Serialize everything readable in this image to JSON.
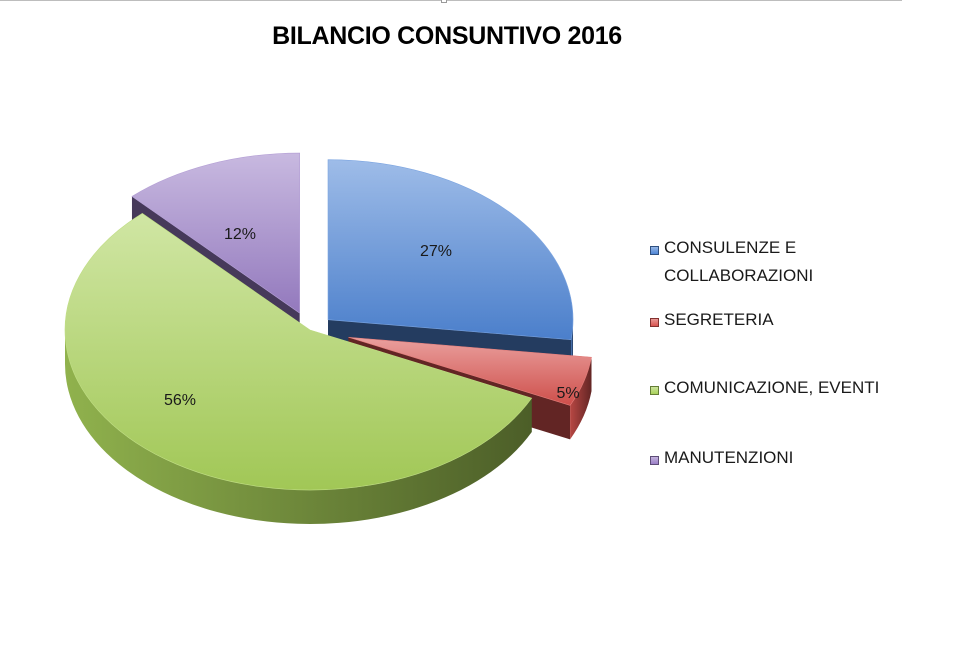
{
  "chart_data": {
    "type": "pie",
    "title": "BILANCIO CONSUNTIVO 2016",
    "three_d": true,
    "exploded": true,
    "legend_position": "right",
    "slices": [
      {
        "label": "CONSULENZE E COLLABORAZIONI",
        "value": 27,
        "value_label": "27%",
        "color": "#4f86d6"
      },
      {
        "label": "SEGRETERIA",
        "value": 5,
        "value_label": "5%",
        "color": "#d9534f"
      },
      {
        "label": "COMUNICAZIONE, EVENTI",
        "value": 56,
        "value_label": "56%",
        "color": "#a9d15a"
      },
      {
        "label": "MANUTENZIONI",
        "value": 12,
        "value_label": "12%",
        "color": "#9b7fc7"
      }
    ],
    "legend_lines": [
      [
        "CONSULENZE E",
        "COLLABORAZIONI"
      ],
      [
        "SEGRETERIA"
      ],
      [
        "COMUNICAZIONE, EVENTI"
      ],
      [
        "MANUTENZIONI"
      ]
    ]
  }
}
